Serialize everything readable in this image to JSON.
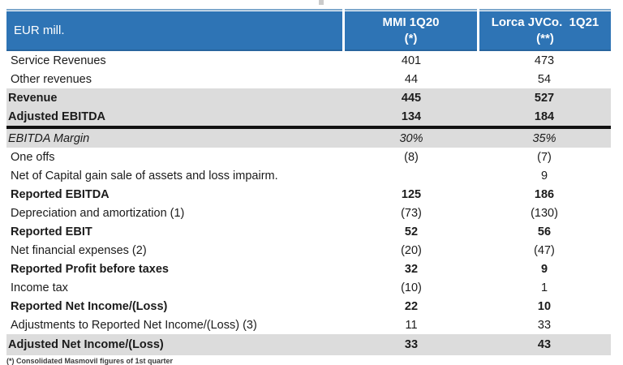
{
  "colors": {
    "header_bg": "#2E74B5",
    "header_text": "#FFFFFF",
    "band_gray": "#DCDCDC",
    "separator_black": "#111111",
    "top_line_blue": "#7FA8CC",
    "text": "#1B1B1B"
  },
  "table": {
    "unit_label": "EUR mill.",
    "columns": [
      {
        "line1": "MMI 1Q20",
        "line2": "(*)"
      },
      {
        "line1": "Lorca JVCo.  1Q21",
        "line2": "(**)"
      }
    ],
    "rows": [
      {
        "label": "Service Revenues",
        "mmi": "401",
        "lorca": "473",
        "style": "plain"
      },
      {
        "label": "Other revenues",
        "mmi": "44",
        "lorca": "54",
        "style": "plain"
      },
      {
        "label": "Revenue",
        "mmi": "445",
        "lorca": "527",
        "style": "band-bold"
      },
      {
        "label": "Adjusted EBITDA",
        "mmi": "134",
        "lorca": "184",
        "style": "band-bold",
        "separator_after": true
      },
      {
        "label": "EBITDA Margin",
        "mmi": "30%",
        "lorca": "35%",
        "style": "band-italic"
      },
      {
        "label": "One offs",
        "mmi": "(8)",
        "lorca": "(7)",
        "style": "plain"
      },
      {
        "label": "Net of Capital gain sale of assets and loss impairm.",
        "mmi": "",
        "lorca": "9",
        "style": "plain"
      },
      {
        "label": "Reported EBITDA",
        "mmi": "125",
        "lorca": "186",
        "style": "summary"
      },
      {
        "label": "Depreciation and amortization (1)",
        "mmi": "(73)",
        "lorca": "(130)",
        "style": "plain"
      },
      {
        "label": "Reported EBIT",
        "mmi": "52",
        "lorca": "56",
        "style": "summary"
      },
      {
        "label": "Net financial expenses (2)",
        "mmi": "(20)",
        "lorca": "(47)",
        "style": "plain"
      },
      {
        "label": "Reported Profit before taxes",
        "mmi": "32",
        "lorca": "9",
        "style": "summary"
      },
      {
        "label": "Income tax",
        "mmi": "(10)",
        "lorca": "1",
        "style": "plain"
      },
      {
        "label": "Reported Net Income/(Loss)",
        "mmi": "22",
        "lorca": "10",
        "style": "summary"
      },
      {
        "label": "Adjustments to Reported Net Income/(Loss) (3)",
        "mmi": "11",
        "lorca": "33",
        "style": "plain"
      },
      {
        "label": "Adjusted Net Income/(Loss)",
        "mmi": "33",
        "lorca": "43",
        "style": "band-bold tall"
      }
    ]
  },
  "footnote": "(*) Consolidated Masmovil figures of 1st quarter"
}
